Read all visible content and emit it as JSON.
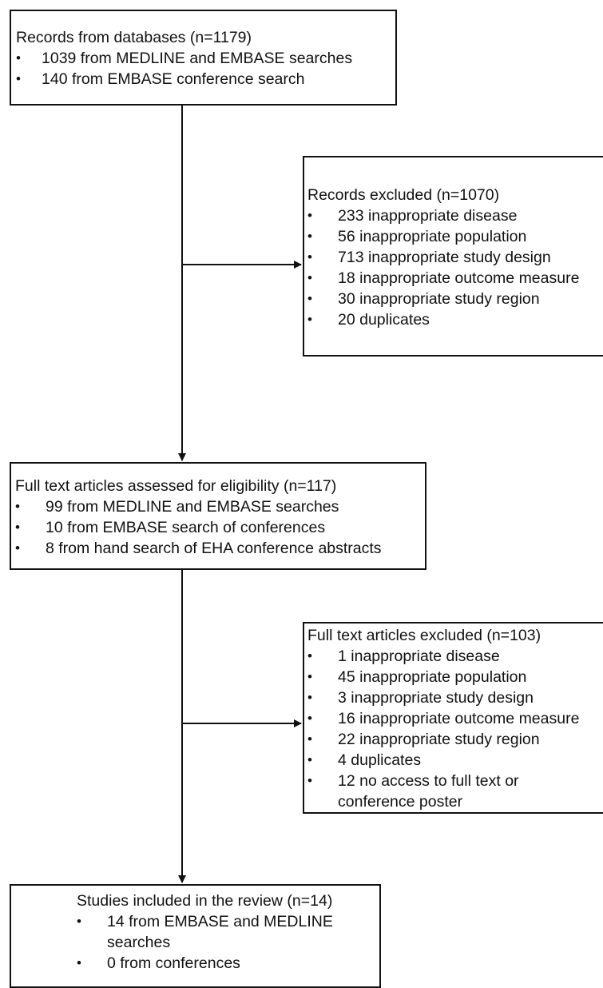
{
  "boxes": {
    "records": {
      "title": "Records from databases (n=1179)",
      "items": [
        "1039 from MEDLINE and EMBASE searches",
        "140 from EMBASE conference search"
      ]
    },
    "excluded_records": {
      "title": "Records excluded (n=1070)",
      "items": [
        "233 inappropriate disease",
        "56 inappropriate population",
        "713 inappropriate study design",
        "18 inappropriate outcome measure",
        "30 inappropriate study region",
        "20 duplicates"
      ]
    },
    "full_text": {
      "title": "Full text articles assessed for eligibility (n=117)",
      "items": [
        "99 from MEDLINE and EMBASE searches",
        "10 from EMBASE search of conferences",
        "8 from hand search of EHA conference abstracts"
      ]
    },
    "excluded_full_text": {
      "title": "Full text articles excluded (n=103)",
      "items": [
        "1 inappropriate disease",
        "45 inappropriate population",
        "3 inappropriate study design",
        "16 inappropriate outcome measure",
        "22 inappropriate study region",
        "4 duplicates",
        "12 no access to full text or conference poster"
      ]
    },
    "included": {
      "title": "Studies included in the review (n=14)",
      "items": [
        "14 from EMBASE and MEDLINE searches",
        "0 from conferences"
      ]
    }
  },
  "bullet_glyph": "•"
}
